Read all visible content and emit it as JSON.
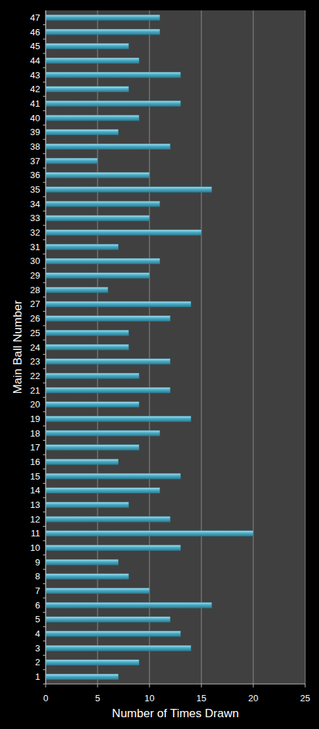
{
  "chart_data": {
    "type": "bar",
    "orientation": "horizontal",
    "x_label": "Number of Times Drawn",
    "y_label": "Main Ball Number",
    "categories": [
      "1",
      "2",
      "3",
      "4",
      "5",
      "6",
      "7",
      "8",
      "9",
      "10",
      "11",
      "12",
      "13",
      "14",
      "15",
      "16",
      "17",
      "18",
      "19",
      "20",
      "21",
      "22",
      "23",
      "24",
      "25",
      "26",
      "27",
      "28",
      "29",
      "30",
      "31",
      "32",
      "33",
      "34",
      "35",
      "36",
      "37",
      "38",
      "39",
      "40",
      "41",
      "42",
      "43",
      "44",
      "45",
      "46",
      "47"
    ],
    "values": [
      7,
      9,
      14,
      13,
      12,
      16,
      10,
      8,
      7,
      13,
      20,
      12,
      8,
      11,
      13,
      7,
      9,
      11,
      14,
      9,
      12,
      9,
      12,
      8,
      8,
      12,
      14,
      6,
      10,
      11,
      7,
      15,
      10,
      11,
      16,
      10,
      5,
      12,
      7,
      9,
      13,
      8,
      13,
      9,
      8,
      11,
      11
    ],
    "color": "#4bacc6",
    "xlim": [
      0,
      25
    ],
    "xticks": [
      0,
      5,
      10,
      15,
      20,
      25
    ],
    "grid": true
  }
}
